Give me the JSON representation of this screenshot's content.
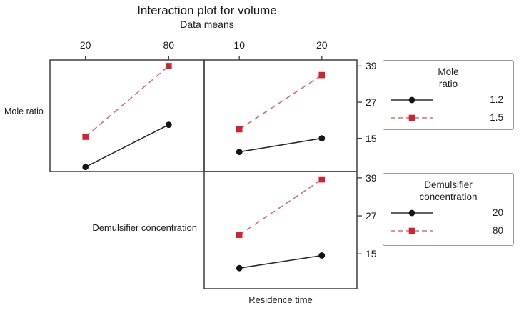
{
  "labels": {
    "row1": "Mole ratio",
    "row2": "Demulsifier concentration",
    "xaxis": "Residence time"
  },
  "chart_data": {
    "type": "line",
    "title": "Interaction plot for volume",
    "subtitle": "Data means",
    "xlabel": "Residence time",
    "y_ticks": [
      39,
      27,
      15
    ],
    "ylim": [
      4,
      41
    ],
    "panels": [
      {
        "name": "mole-ratio-vs-demulsifier-concentration",
        "row_label": "Mole ratio",
        "x": [
          20,
          80
        ],
        "x_ticks": [
          "20",
          "80"
        ],
        "series": [
          {
            "name": "1.2",
            "marker": "circle",
            "dash": false,
            "color": "#141414",
            "line_color": "#2b2b2b",
            "values": [
              5.5,
              19.5
            ]
          },
          {
            "name": "1.5",
            "marker": "square",
            "dash": true,
            "color": "#d2232e",
            "line_color": "#cf7077",
            "values": [
              15.5,
              39
            ]
          }
        ]
      },
      {
        "name": "mole-ratio-vs-residence-time",
        "row_label": "Mole ratio",
        "x": [
          10,
          20
        ],
        "x_ticks": [
          "10",
          "20"
        ],
        "series": [
          {
            "name": "1.2",
            "marker": "circle",
            "dash": false,
            "color": "#141414",
            "line_color": "#2b2b2b",
            "values": [
              10.5,
              15
            ]
          },
          {
            "name": "1.5",
            "marker": "square",
            "dash": true,
            "color": "#d2232e",
            "line_color": "#cf7077",
            "values": [
              18,
              36
            ]
          }
        ]
      },
      {
        "name": "demulsifier-concentration-vs-residence-time",
        "row_label": "Demulsifier concentration",
        "x": [
          10,
          20
        ],
        "x_ticks": [
          "10",
          "20"
        ],
        "series": [
          {
            "name": "20",
            "marker": "circle",
            "dash": false,
            "color": "#141414",
            "line_color": "#2b2b2b",
            "values": [
              10.5,
              14.5
            ]
          },
          {
            "name": "80",
            "marker": "square",
            "dash": true,
            "color": "#d2232e",
            "line_color": "#cf7077",
            "values": [
              21,
              38.5
            ]
          }
        ]
      }
    ]
  },
  "legends": [
    {
      "title_lines": [
        "Mole",
        "ratio"
      ],
      "entries": [
        {
          "label": "1.2",
          "marker": "circle",
          "dash": false,
          "color": "#141414",
          "line_color": "#2b2b2b"
        },
        {
          "label": "1.5",
          "marker": "square",
          "dash": true,
          "color": "#d2232e",
          "line_color": "#cf7077"
        }
      ]
    },
    {
      "title_lines": [
        "Demulsifier",
        "concentration"
      ],
      "entries": [
        {
          "label": "20",
          "marker": "circle",
          "dash": false,
          "color": "#141414",
          "line_color": "#2b2b2b"
        },
        {
          "label": "80",
          "marker": "square",
          "dash": true,
          "color": "#d2232e",
          "line_color": "#cf7077"
        }
      ]
    }
  ]
}
